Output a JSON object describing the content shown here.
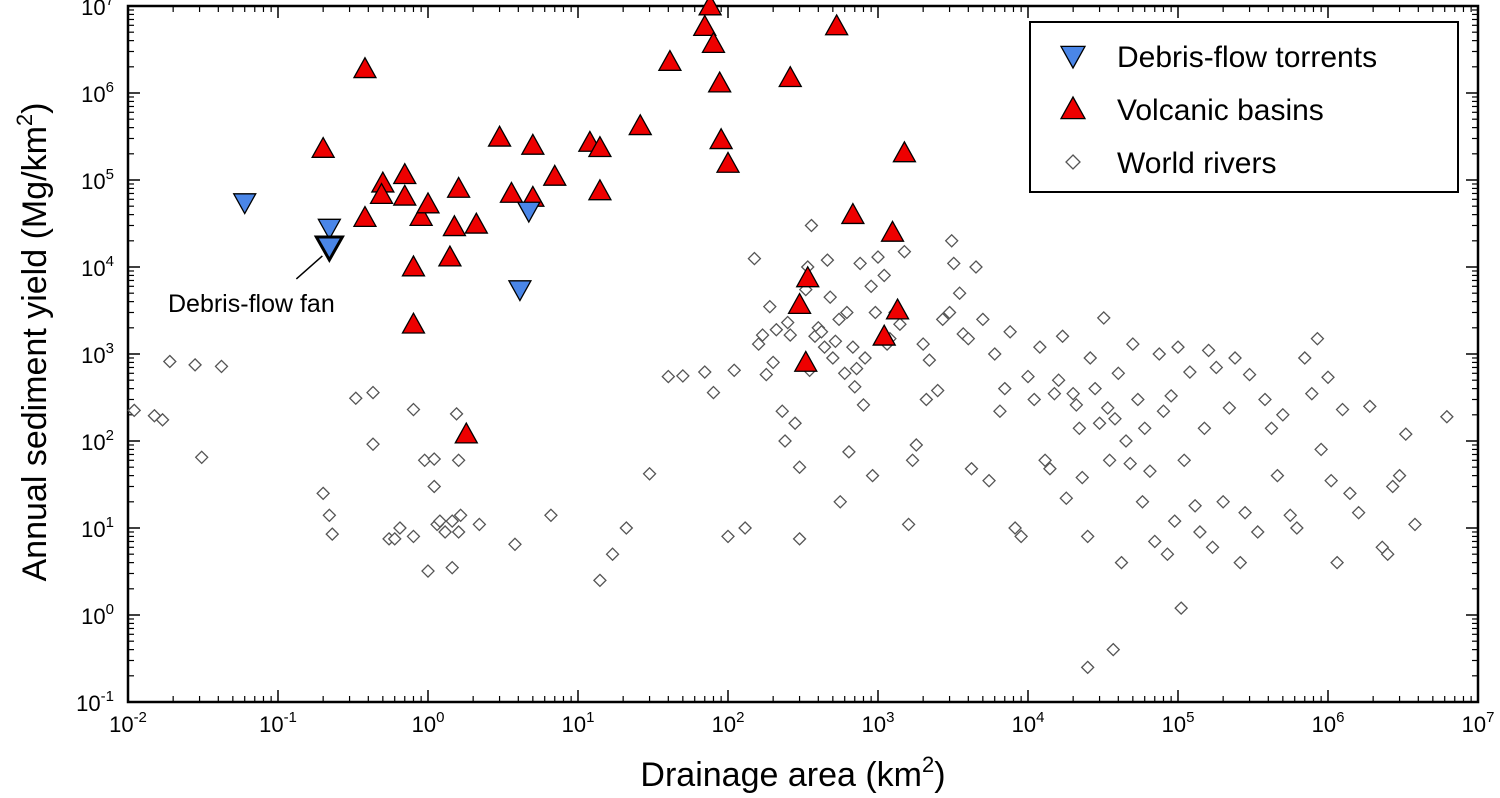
{
  "chart_data": {
    "type": "scatter",
    "xlabel": "Drainage area (km",
    "xlabel_sup": "2",
    "xlabel_end": ")",
    "ylabel": "Annual sediment yield (Mg/km",
    "ylabel_sup": "2",
    "ylabel_end": ")",
    "x_scale": "log",
    "y_scale": "log",
    "xlim": [
      0.01,
      10000000
    ],
    "ylim": [
      0.1,
      10000000
    ],
    "grid": false,
    "legend_position": "top-right",
    "x_ticks": [
      {
        "base": "10",
        "exp": "-2",
        "value": 0.01
      },
      {
        "base": "10",
        "exp": "-1",
        "value": 0.1
      },
      {
        "base": "10",
        "exp": "0",
        "value": 1
      },
      {
        "base": "10",
        "exp": "1",
        "value": 10
      },
      {
        "base": "10",
        "exp": "2",
        "value": 100
      },
      {
        "base": "10",
        "exp": "3",
        "value": 1000
      },
      {
        "base": "10",
        "exp": "4",
        "value": 10000
      },
      {
        "base": "10",
        "exp": "5",
        "value": 100000
      },
      {
        "base": "10",
        "exp": "6",
        "value": 1000000
      },
      {
        "base": "10",
        "exp": "7",
        "value": 10000000
      }
    ],
    "y_ticks": [
      {
        "base": "10",
        "exp": "-1",
        "value": 0.1
      },
      {
        "base": "10",
        "exp": "0",
        "value": 1
      },
      {
        "base": "10",
        "exp": "1",
        "value": 10
      },
      {
        "base": "10",
        "exp": "2",
        "value": 100
      },
      {
        "base": "10",
        "exp": "3",
        "value": 1000
      },
      {
        "base": "10",
        "exp": "4",
        "value": 10000
      },
      {
        "base": "10",
        "exp": "5",
        "value": 100000
      },
      {
        "base": "10",
        "exp": "6",
        "value": 1000000
      },
      {
        "base": "10",
        "exp": "7",
        "value": 10000000
      }
    ],
    "annotation": {
      "text": "Debris-flow fan",
      "points_to": [
        0.22,
        17000
      ]
    },
    "series": [
      {
        "name": "Debris-flow torrents",
        "marker": "triangle-down",
        "color": "#4a86e8",
        "points": [
          [
            0.06,
            55000
          ],
          [
            0.22,
            28000
          ],
          [
            0.22,
            16000
          ],
          [
            4.7,
            44000
          ],
          [
            4.1,
            5500
          ]
        ]
      },
      {
        "name": "Volcanic basins",
        "marker": "triangle-up",
        "color": "#ee0000",
        "points": [
          [
            0.2,
            230000
          ],
          [
            0.38,
            1900000
          ],
          [
            0.38,
            37000
          ],
          [
            0.5,
            92000
          ],
          [
            0.49,
            68000
          ],
          [
            0.7,
            115000
          ],
          [
            0.7,
            65000
          ],
          [
            0.8,
            10000
          ],
          [
            0.8,
            2200
          ],
          [
            0.9,
            38000
          ],
          [
            1.0,
            53000
          ],
          [
            1.4,
            13000
          ],
          [
            1.5,
            29000
          ],
          [
            1.6,
            80000
          ],
          [
            1.8,
            120
          ],
          [
            2.1,
            31000
          ],
          [
            3.0,
            310000
          ],
          [
            3.6,
            70000
          ],
          [
            5.0,
            250000
          ],
          [
            5.0,
            63000
          ],
          [
            7.0,
            110000
          ],
          [
            12,
            270000
          ],
          [
            14,
            235000
          ],
          [
            14,
            75000
          ],
          [
            26,
            420000
          ],
          [
            41,
            2300000
          ],
          [
            70,
            5800000
          ],
          [
            76,
            10000000
          ],
          [
            80,
            3700000
          ],
          [
            88,
            1300000
          ],
          [
            90,
            290000
          ],
          [
            100,
            155000
          ],
          [
            260,
            1500000
          ],
          [
            300,
            3700
          ],
          [
            330,
            800
          ],
          [
            340,
            7500
          ],
          [
            530,
            5900000
          ],
          [
            680,
            40000
          ],
          [
            1100,
            1600
          ],
          [
            1250,
            25000
          ],
          [
            1350,
            3200
          ],
          [
            1500,
            205000
          ]
        ]
      },
      {
        "name": "World rivers",
        "marker": "diamond",
        "color": "#888888",
        "points": [
          [
            0.011,
            225
          ],
          [
            0.015,
            195
          ],
          [
            0.017,
            175
          ],
          [
            0.019,
            820
          ],
          [
            0.028,
            750
          ],
          [
            0.031,
            65
          ],
          [
            0.042,
            720
          ],
          [
            0.2,
            25
          ],
          [
            0.22,
            14
          ],
          [
            0.23,
            8.5
          ],
          [
            0.33,
            310
          ],
          [
            0.43,
            360
          ],
          [
            0.43,
            92
          ],
          [
            0.55,
            7.5
          ],
          [
            0.6,
            7.5
          ],
          [
            0.65,
            10
          ],
          [
            0.8,
            230
          ],
          [
            0.8,
            8
          ],
          [
            0.95,
            60
          ],
          [
            1.0,
            3.2
          ],
          [
            1.1,
            30
          ],
          [
            1.1,
            62
          ],
          [
            1.15,
            11
          ],
          [
            1.2,
            12
          ],
          [
            1.3,
            9
          ],
          [
            1.45,
            3.5
          ],
          [
            1.45,
            12
          ],
          [
            1.55,
            205
          ],
          [
            1.6,
            9
          ],
          [
            1.6,
            60
          ],
          [
            1.65,
            14
          ],
          [
            2.2,
            11
          ],
          [
            3.8,
            6.5
          ],
          [
            6.6,
            14
          ],
          [
            14,
            2.5
          ],
          [
            17,
            5
          ],
          [
            21,
            10
          ],
          [
            30,
            42
          ],
          [
            40,
            550
          ],
          [
            50,
            560
          ],
          [
            70,
            620
          ],
          [
            80,
            360
          ],
          [
            100,
            8
          ],
          [
            110,
            650
          ],
          [
            130,
            10
          ],
          [
            150,
            12500
          ],
          [
            160,
            1300
          ],
          [
            170,
            1650
          ],
          [
            180,
            580
          ],
          [
            190,
            3500
          ],
          [
            200,
            800
          ],
          [
            210,
            1900
          ],
          [
            230,
            220
          ],
          [
            240,
            100
          ],
          [
            250,
            2300
          ],
          [
            260,
            1650
          ],
          [
            280,
            160
          ],
          [
            300,
            50
          ],
          [
            300,
            7.5
          ],
          [
            330,
            5500
          ],
          [
            340,
            10000
          ],
          [
            350,
            650
          ],
          [
            360,
            30000
          ],
          [
            380,
            1600
          ],
          [
            400,
            2000
          ],
          [
            420,
            1800
          ],
          [
            440,
            1200
          ],
          [
            460,
            12000
          ],
          [
            480,
            4500
          ],
          [
            500,
            900
          ],
          [
            520,
            1400
          ],
          [
            550,
            2500
          ],
          [
            560,
            20
          ],
          [
            600,
            600
          ],
          [
            620,
            3000
          ],
          [
            640,
            75
          ],
          [
            680,
            1200
          ],
          [
            700,
            420
          ],
          [
            720,
            680
          ],
          [
            760,
            11000
          ],
          [
            800,
            260
          ],
          [
            820,
            900
          ],
          [
            900,
            6000
          ],
          [
            920,
            40
          ],
          [
            960,
            3000
          ],
          [
            1000,
            13000
          ],
          [
            1100,
            8000
          ],
          [
            1150,
            1300
          ],
          [
            1200,
            1500
          ],
          [
            1300,
            3000
          ],
          [
            1400,
            2200
          ],
          [
            1500,
            15000
          ],
          [
            1600,
            11
          ],
          [
            1700,
            60
          ],
          [
            1800,
            90
          ],
          [
            2000,
            1300
          ],
          [
            2100,
            300
          ],
          [
            2200,
            850
          ],
          [
            2500,
            380
          ],
          [
            2700,
            2500
          ],
          [
            3000,
            3000
          ],
          [
            3100,
            20000
          ],
          [
            3200,
            11000
          ],
          [
            3500,
            5000
          ],
          [
            3700,
            1700
          ],
          [
            4000,
            1500
          ],
          [
            4200,
            48
          ],
          [
            4500,
            10000
          ],
          [
            5000,
            2500
          ],
          [
            5500,
            35
          ],
          [
            6000,
            1000
          ],
          [
            6500,
            220
          ],
          [
            7000,
            400
          ],
          [
            7600,
            1800
          ],
          [
            8200,
            10
          ],
          [
            9000,
            8
          ],
          [
            10000,
            550
          ],
          [
            11000,
            300
          ],
          [
            12000,
            1200
          ],
          [
            13000,
            60
          ],
          [
            14000,
            48
          ],
          [
            15000,
            350
          ],
          [
            16000,
            500
          ],
          [
            17000,
            1600
          ],
          [
            18000,
            22
          ],
          [
            20000,
            350
          ],
          [
            21000,
            260
          ],
          [
            22000,
            140
          ],
          [
            23000,
            38
          ],
          [
            25000,
            8
          ],
          [
            25000,
            0.25
          ],
          [
            26000,
            900
          ],
          [
            28000,
            400
          ],
          [
            30000,
            160
          ],
          [
            32000,
            2600
          ],
          [
            34000,
            240
          ],
          [
            35000,
            60
          ],
          [
            37000,
            0.4
          ],
          [
            38000,
            180
          ],
          [
            40000,
            600
          ],
          [
            42000,
            4
          ],
          [
            45000,
            100
          ],
          [
            48000,
            55
          ],
          [
            50000,
            1300
          ],
          [
            54000,
            300
          ],
          [
            58000,
            20
          ],
          [
            60000,
            140
          ],
          [
            65000,
            45
          ],
          [
            70000,
            7
          ],
          [
            75000,
            1000
          ],
          [
            80000,
            220
          ],
          [
            85000,
            5
          ],
          [
            90000,
            330
          ],
          [
            95000,
            12
          ],
          [
            100000,
            1200
          ],
          [
            105000,
            1.2
          ],
          [
            110000,
            60
          ],
          [
            120000,
            620
          ],
          [
            130000,
            18
          ],
          [
            140000,
            9
          ],
          [
            150000,
            140
          ],
          [
            160000,
            1100
          ],
          [
            170000,
            6
          ],
          [
            180000,
            700
          ],
          [
            200000,
            20
          ],
          [
            220000,
            240
          ],
          [
            240000,
            900
          ],
          [
            260000,
            4
          ],
          [
            280000,
            15
          ],
          [
            300000,
            580
          ],
          [
            340000,
            9
          ],
          [
            380000,
            300
          ],
          [
            420000,
            140
          ],
          [
            460000,
            40
          ],
          [
            500000,
            200
          ],
          [
            560000,
            14
          ],
          [
            620000,
            10
          ],
          [
            700000,
            900
          ],
          [
            780000,
            350
          ],
          [
            850000,
            1500
          ],
          [
            900000,
            80
          ],
          [
            1000000,
            540
          ],
          [
            1050000,
            35
          ],
          [
            1150000,
            4
          ],
          [
            1250000,
            230
          ],
          [
            1400000,
            25
          ],
          [
            1600000,
            15
          ],
          [
            1900000,
            250
          ],
          [
            2300000,
            6
          ],
          [
            2500000,
            5
          ],
          [
            2700000,
            30
          ],
          [
            3000000,
            40
          ],
          [
            3300000,
            120
          ],
          [
            3800000,
            11
          ],
          [
            6200000,
            190
          ]
        ]
      }
    ]
  }
}
